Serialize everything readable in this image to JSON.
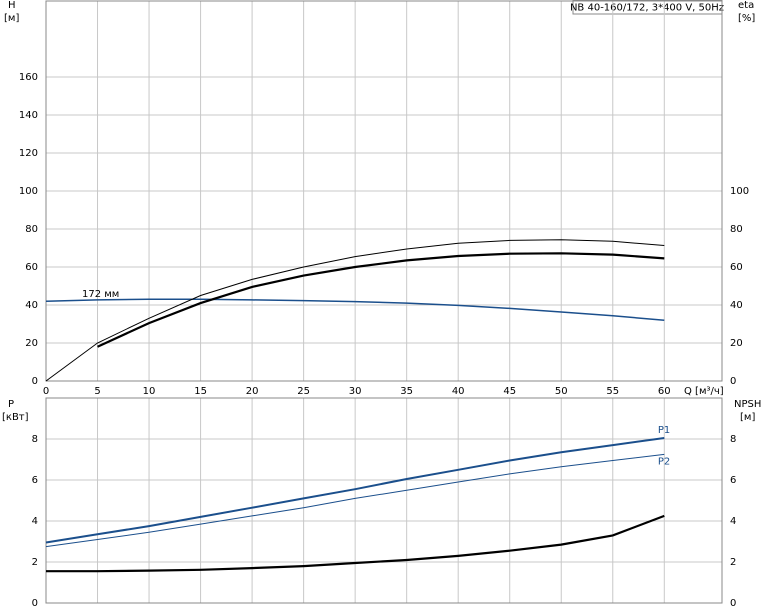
{
  "chart_data": [
    {
      "type": "line",
      "title": "NB 40-160/172, 3*400 V, 50Hz",
      "ylabel": "H",
      "yunit": "[м]",
      "y2label": "eta",
      "y2unit": "[%]",
      "xlabel": "Q [м³/ч]",
      "x": [
        0,
        5,
        10,
        15,
        20,
        25,
        30,
        35,
        40,
        45,
        50,
        55,
        60
      ],
      "xlim": [
        0,
        65.6
      ],
      "xticks": [
        0,
        5,
        10,
        15,
        20,
        25,
        30,
        35,
        40,
        45,
        50,
        55,
        60
      ],
      "ylim": [
        0,
        200
      ],
      "yticks": [
        0,
        20,
        40,
        60,
        80,
        100,
        120,
        140,
        160
      ],
      "y2lim": [
        0,
        200
      ],
      "y2ticks": [
        0,
        20,
        40,
        60,
        80,
        100
      ],
      "grid": true,
      "series": [
        {
          "name": "172 мм",
          "color": "#1b4f8c",
          "values": [
            42,
            42.7,
            43,
            43,
            42.7,
            42.3,
            41.8,
            41,
            39.8,
            38.2,
            36.3,
            34.3,
            32
          ]
        },
        {
          "color": "#000000",
          "axis": "y2",
          "values": [
            0,
            20,
            33,
            45,
            53.5,
            60,
            65.5,
            69.5,
            72.5,
            74,
            74.3,
            73.5,
            71.3
          ]
        },
        {
          "color": "#000000",
          "axis": "y2",
          "values": [
            null,
            18,
            30.5,
            41,
            49.5,
            55.5,
            60,
            63.5,
            65.8,
            67,
            67.2,
            66.5,
            64.5
          ]
        }
      ]
    },
    {
      "type": "line",
      "ylabel": "P",
      "yunit": "[кВт]",
      "y2label": "NPSH",
      "y2unit": "[м]",
      "x": [
        0,
        5,
        10,
        15,
        20,
        25,
        30,
        35,
        40,
        45,
        50,
        55,
        60
      ],
      "xlim": [
        0,
        65.6
      ],
      "xticks": [
        0,
        5,
        10,
        15,
        20,
        25,
        30,
        35,
        40,
        45,
        50,
        55,
        60
      ],
      "ylim": [
        0,
        10
      ],
      "yticks": [
        0,
        2,
        4,
        6,
        8
      ],
      "y2lim": [
        0,
        10
      ],
      "y2ticks": [
        0,
        2,
        4,
        6,
        8
      ],
      "grid": true,
      "series": [
        {
          "name": "P1",
          "color": "#1b4f8c",
          "values": [
            2.95,
            3.35,
            3.75,
            4.2,
            4.65,
            5.1,
            5.55,
            6.05,
            6.5,
            6.95,
            7.35,
            7.7,
            8.05
          ]
        },
        {
          "name": "P2",
          "color": "#1b4f8c",
          "values": [
            2.75,
            3.1,
            3.45,
            3.85,
            4.25,
            4.65,
            5.1,
            5.5,
            5.9,
            6.3,
            6.65,
            6.95,
            7.25
          ]
        },
        {
          "color": "#000000",
          "axis": "y2",
          "values": [
            1.55,
            1.55,
            1.58,
            1.62,
            1.7,
            1.8,
            1.95,
            2.1,
            2.3,
            2.55,
            2.85,
            3.3,
            4.25
          ]
        }
      ]
    }
  ]
}
